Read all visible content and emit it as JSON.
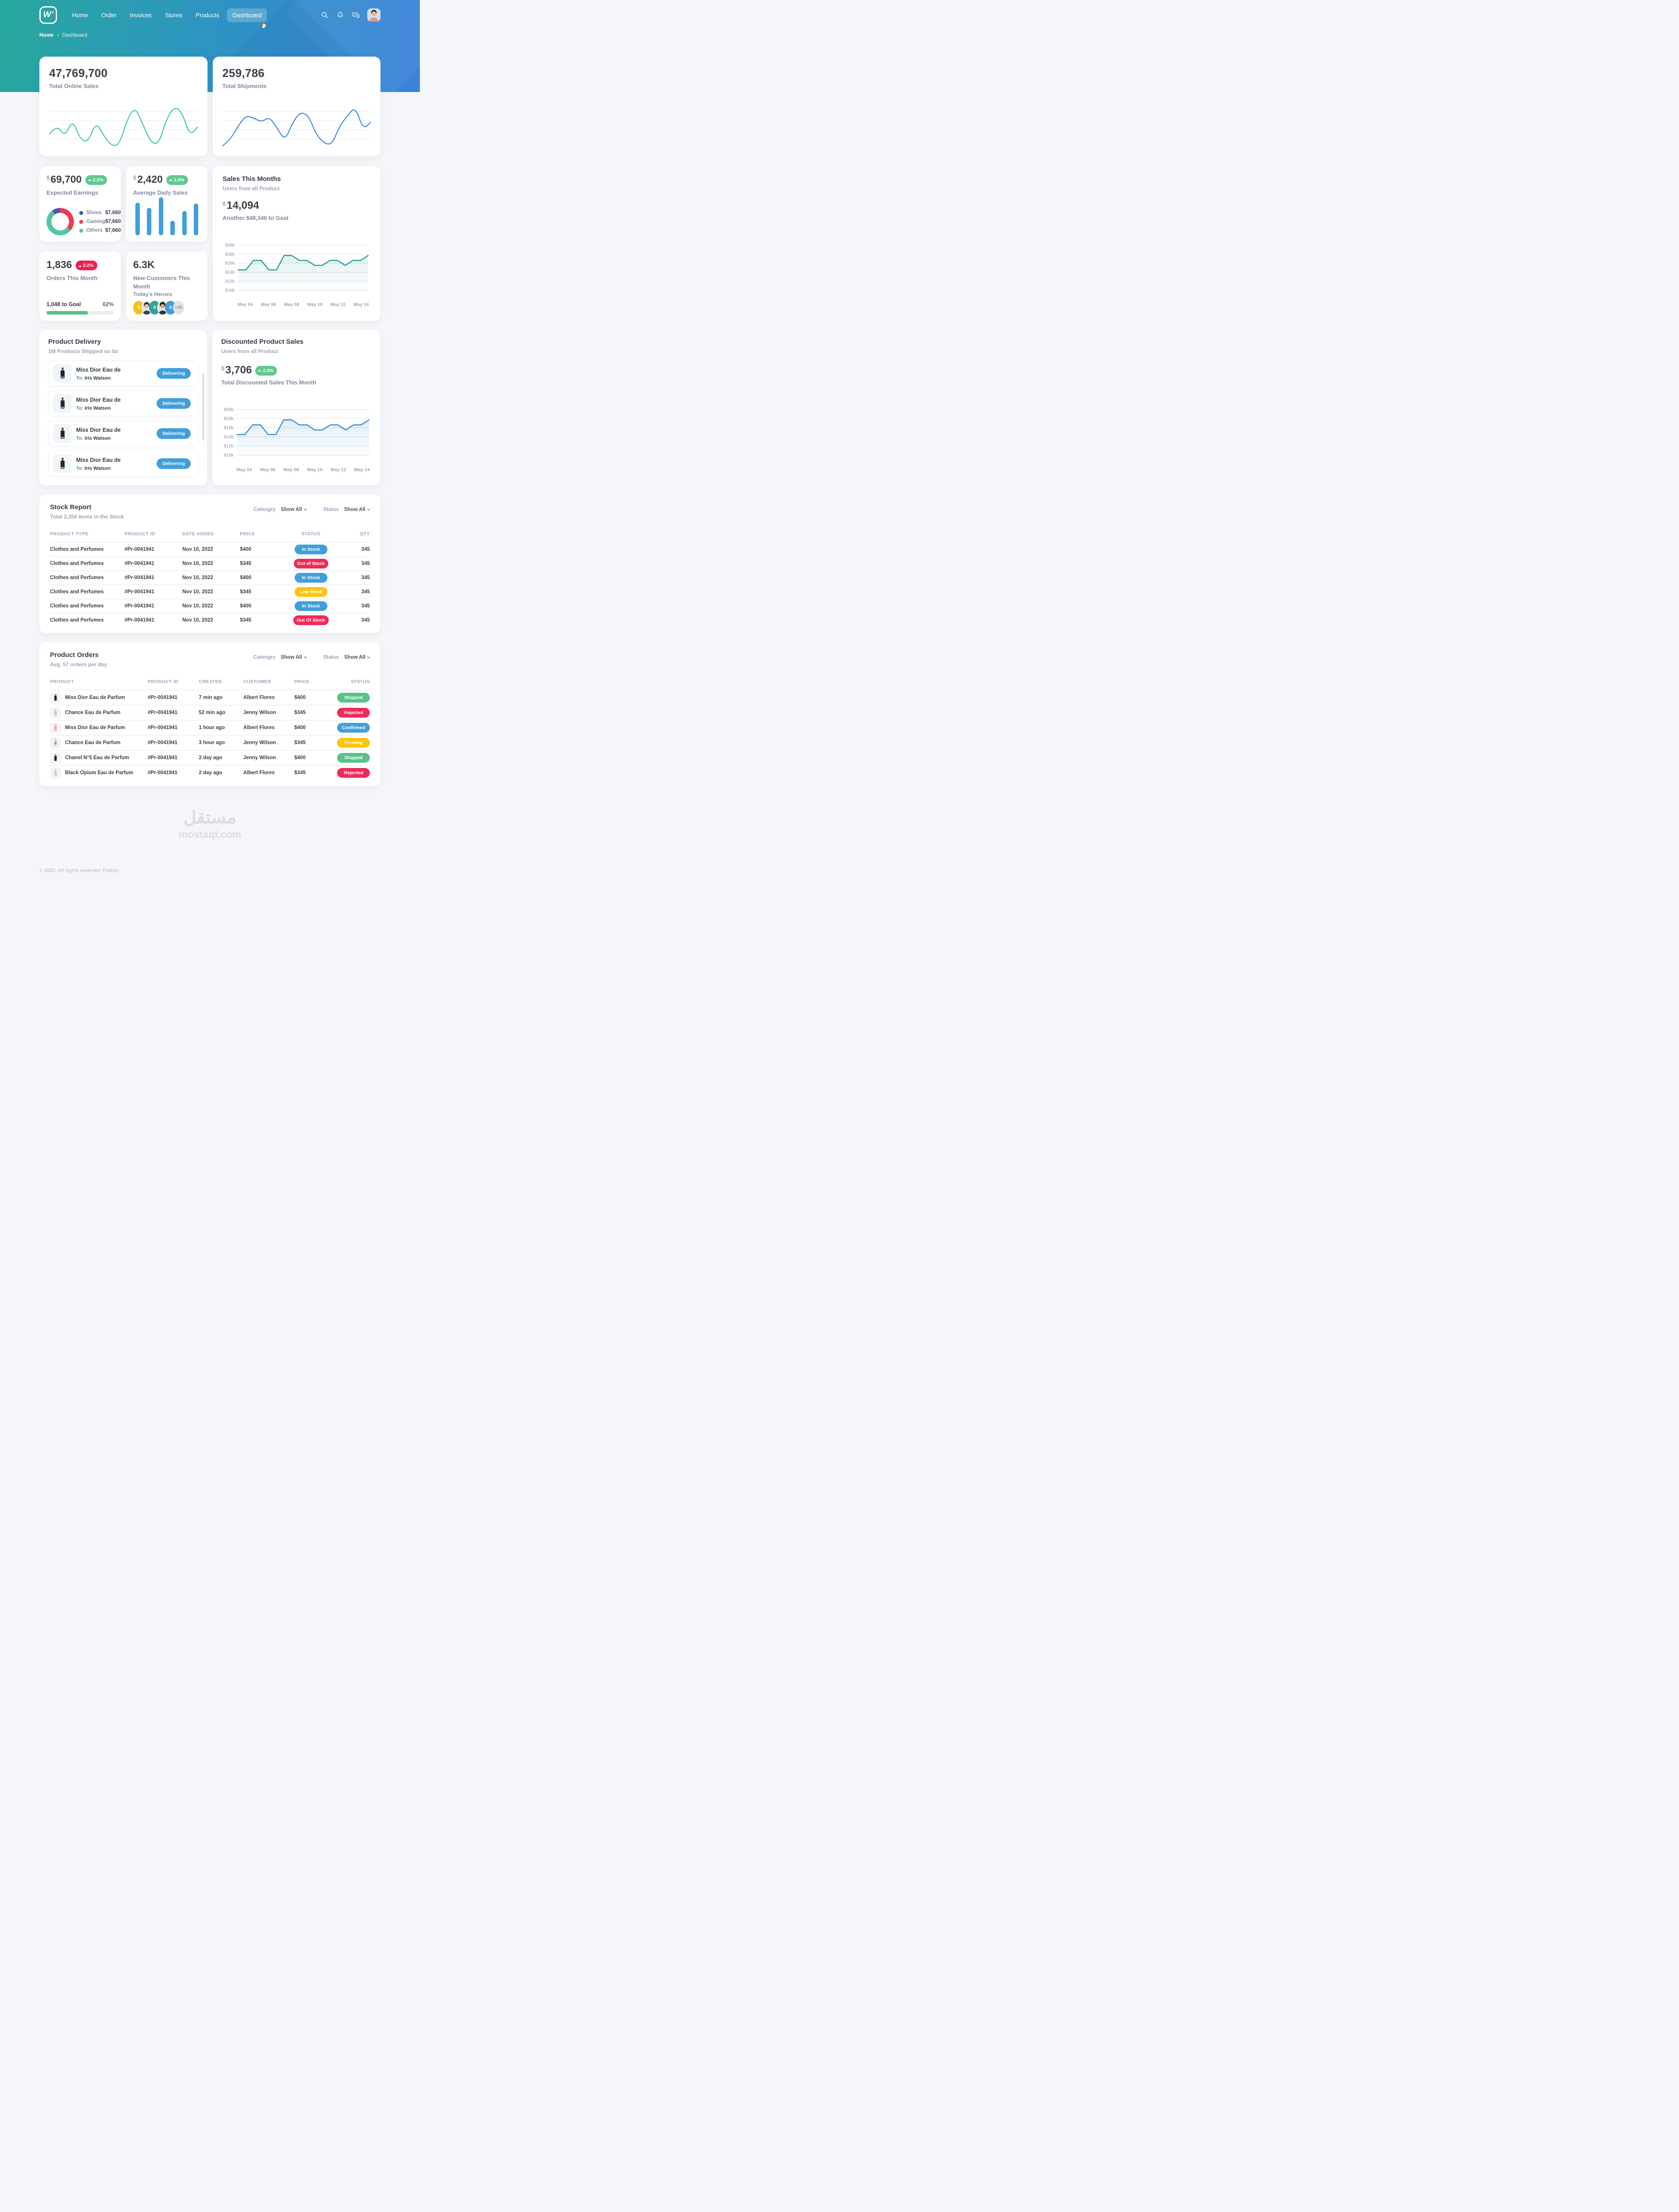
{
  "nav": {
    "logo": "W’",
    "items": [
      {
        "label": "Home"
      },
      {
        "label": "Order"
      },
      {
        "label": "Invoices"
      },
      {
        "label": "Stores"
      },
      {
        "label": "Products"
      },
      {
        "label": "Dashboard",
        "active": true
      }
    ],
    "icons": [
      "search-icon",
      "bell-icon",
      "chat-icon"
    ]
  },
  "breadcrumb": {
    "home": "Home",
    "sep": "›",
    "current": "Dashboard"
  },
  "stats_row": [
    {
      "value": "47,769,700",
      "label": "Total Online Sales"
    },
    {
      "value": "259,786",
      "label": "Total Shipments"
    }
  ],
  "expected_earnings": {
    "currency": "$",
    "value": "69,700",
    "badge": "2.2%",
    "label": "Expected Earnings",
    "legend": [
      {
        "name": "Shoes",
        "value": "$7,660",
        "color": "#4956b3"
      },
      {
        "name": "Gaming",
        "value": "$7,660",
        "color": "#ee3b50"
      },
      {
        "name": "Others",
        "value": "$7,660",
        "color": "#52c5a7"
      }
    ]
  },
  "avg_daily_sales": {
    "currency": "$",
    "value": "2,420",
    "badge": "2.6%",
    "label": "Average Daily Sales"
  },
  "sales_this_month": {
    "title": "Sales This Months",
    "subtitle": "Users from all Product",
    "currency": "$",
    "value": "14,094",
    "goal_label": "Another $48,346 to Goal"
  },
  "orders_this_month": {
    "value": "1,836",
    "badge": "2.2%",
    "label": "Orders This Month",
    "goal_label": "1,048 to Goal",
    "goal_pct": "62%",
    "progress_css": "62%"
  },
  "new_customers": {
    "value": "6.3K",
    "label": "New Customers This Month",
    "heroes_label": "Today’s Heroes",
    "avatars": [
      {
        "kind": "initial",
        "label": "S",
        "bg": "#f2c11c"
      },
      {
        "kind": "photo",
        "label": "",
        "bg": "#dfe7ef"
      },
      {
        "kind": "initial",
        "label": "S",
        "bg": "#2aa59b"
      },
      {
        "kind": "photo",
        "label": "",
        "bg": "#e9e3da"
      },
      {
        "kind": "initial",
        "label": "S",
        "bg": "#3f9fdb"
      },
      {
        "kind": "more",
        "label": "+45",
        "bg": "#e3e3e6"
      }
    ]
  },
  "product_delivery": {
    "title": "Product Delivery",
    "subtitle": "1M Products Shipped so far",
    "items": [
      {
        "name": "Miss Dior Eau de",
        "to_label": "To:",
        "to": "Iris Watson",
        "status": "Delivering"
      },
      {
        "name": "Miss Dior Eau de",
        "to_label": "To:",
        "to": "Iris Watson",
        "status": "Delivering"
      },
      {
        "name": "Miss Dior Eau de",
        "to_label": "To:",
        "to": "Iris Watson",
        "status": "Delivering"
      },
      {
        "name": "Miss Dior Eau de",
        "to_label": "To:",
        "to": "Iris Watson",
        "status": "Delivering"
      }
    ]
  },
  "discounted_sales": {
    "title": "Discounted Product Sales",
    "subtitle": "Users from all Product",
    "currency": "$",
    "value": "3,706",
    "badge": "2.2%",
    "label": "Total Discounted Sales This Month"
  },
  "stock_report": {
    "title": "Stock Report",
    "subtitle": "Total 2,356 Items in the Stock",
    "filters": {
      "category_label": "Cateogry",
      "category_value": "Show All",
      "status_label": "Status",
      "status_value": "Show All"
    },
    "columns": [
      "PRODUCT TYPE",
      "PRODUCT ID",
      "DATE ADDED",
      "PRICE",
      "STATUS",
      "QTY"
    ],
    "rows": [
      {
        "type": "Clothes and Perfumes",
        "id": "#Pr-0041941",
        "date": "Nov 10, 2022",
        "price": "$400",
        "status": "In Stock",
        "qty": "345"
      },
      {
        "type": "Clothes and Perfumes",
        "id": "#Pr-0041941",
        "date": "Nov 10, 2022",
        "price": "$345",
        "status": "Out of Stock",
        "qty": "345"
      },
      {
        "type": "Clothes and Perfumes",
        "id": "#Pr-0041941",
        "date": "Nov 10, 2022",
        "price": "$400",
        "status": "In Stock",
        "qty": "345"
      },
      {
        "type": "Clothes and Perfumes",
        "id": "#Pr-0041941",
        "date": "Nov 10, 2022",
        "price": "$345",
        "status": "Low Stock",
        "qty": "345"
      },
      {
        "type": "Clothes and Perfumes",
        "id": "#Pr-0041941",
        "date": "Nov 10, 2022",
        "price": "$400",
        "status": "In Stock",
        "qty": "345"
      },
      {
        "type": "Clothes and Perfumes",
        "id": "#Pr-0041941",
        "date": "Nov 10, 2022",
        "price": "$345",
        "status": "Out Of Stock",
        "qty": "345"
      }
    ]
  },
  "product_orders": {
    "title": "Product Orders",
    "subtitle": "Avg. 57 orders per day",
    "filters": {
      "category_label": "Cateogry",
      "category_value": "Show All",
      "status_label": "Status",
      "status_value": "Show All"
    },
    "columns": [
      "PRODUCT",
      "PRODUCT ID",
      "CREATED",
      "CUSTOMER",
      "PRICE",
      "STATUS"
    ],
    "rows": [
      {
        "product": "Miss Dior Eau de Parfum",
        "id": "#Pr-0041941",
        "created": "7 min ago",
        "customer": "Albert Flores",
        "price": "$400",
        "status": "Shipped",
        "bottle_color": "#1f2733"
      },
      {
        "product": "Chance Eau de Parfum",
        "id": "#Pr-0041941",
        "created": "52 min ago",
        "customer": "Jenny Wilson",
        "price": "$345",
        "status": "Rejected",
        "bottle_color": "#e9b8c6"
      },
      {
        "product": "Miss Dior Eau de Parfum",
        "id": "#Pr-0041941",
        "created": "1 hour ago",
        "customer": "Albert Flores",
        "price": "$400",
        "status": "Confirmed",
        "bottle_color": "#f0a8c3"
      },
      {
        "product": "Chance Eau de Parfum",
        "id": "#Pr-0041941",
        "created": "3 hour ago",
        "customer": "Jenny Wilson",
        "price": "$345",
        "status": "Pending",
        "bottle_color": "#dcc48e"
      },
      {
        "product": "Chanel N°5 Eau de Parfum",
        "id": "#Pr-0041941",
        "created": "2 day ago",
        "customer": "Jenny Wilson",
        "price": "$400",
        "status": "Shipped",
        "bottle_color": "#1f2733"
      },
      {
        "product": "Black Opium Eau de Parfum",
        "id": "#Pr-0041941",
        "created": "2 day ago",
        "customer": "Albert Flores",
        "price": "$345",
        "status": "Rejected",
        "bottle_color": "#e7c3ca"
      }
    ]
  },
  "watermark": {
    "arabic": "مستقل",
    "domain": "mostaql.com"
  },
  "footer": {
    "copyright": "© 2022, All rights reserved TheKey"
  },
  "colors": {
    "header_gradient_start": "#27a89c",
    "header_gradient_end": "#3b82d9",
    "badge_up": "#5fc98e",
    "badge_down": "#ef1f56",
    "status": {
      "In Stock": "#3f9fdb",
      "Out of Stock": "#ee2a5b",
      "Out Of Stock": "#ee2a5b",
      "Low Stock": "#fcc40a",
      "Shipped": "#58c28c",
      "Rejected": "#ee2a5b",
      "Confirmed": "#3f9fdb",
      "Pending": "#fcc40a",
      "Delivering": "#3f9fdb"
    }
  },
  "chart_data": [
    {
      "id": "total-online-sales-spark",
      "type": "line",
      "title": "Total Online Sales trend",
      "color": "#3fc98c",
      "grid_lines": 4,
      "values": [
        42,
        58,
        38,
        66,
        34,
        30,
        62,
        40,
        24,
        26,
        66,
        86,
        58,
        30,
        26,
        66,
        86,
        78,
        40,
        54
      ]
    },
    {
      "id": "total-shipments-spark",
      "type": "line",
      "title": "Total Shipments trend",
      "color": "#3d87d8",
      "grid_lines": 4,
      "values": [
        26,
        36,
        58,
        74,
        70,
        64,
        72,
        54,
        34,
        64,
        80,
        74,
        44,
        30,
        28,
        58,
        74,
        88,
        52,
        64
      ]
    },
    {
      "id": "average-daily-sales-bars",
      "type": "bar",
      "title": "Average Daily Sales",
      "color": "#3f9fdb",
      "values": [
        62,
        52,
        72,
        28,
        46,
        60
      ]
    },
    {
      "id": "expected-earnings-donut",
      "type": "pie",
      "title": "Expected Earnings split",
      "slices": [
        {
          "label": "Gaming",
          "pct": 36,
          "color": "#ee3b50"
        },
        {
          "label": "Others",
          "pct": 54,
          "color": "#52c5a7"
        },
        {
          "label": "Shoes",
          "pct": 10,
          "color": "#4956b3"
        }
      ]
    },
    {
      "id": "sales-this-month-area",
      "type": "area",
      "title": "Sales This Months",
      "color": "#2ba29b",
      "fill_opacity": 0.14,
      "values": [
        14.5,
        14.5,
        16.6,
        16.6,
        14.5,
        14.5,
        17.7,
        17.7,
        16.6,
        16.6,
        15.5,
        15.5,
        16.6,
        16.6,
        15.5,
        16.6,
        16.6,
        17.7
      ],
      "ylim": [
        9.2,
        20.8
      ],
      "y_values": [
        20,
        18,
        16,
        14,
        12,
        10
      ],
      "y_ticks": [
        "$20k",
        "$18k",
        "$16k",
        "$14k",
        "$12k",
        "$10k"
      ],
      "x_labels": [
        "May 04",
        "May 06",
        "May 08",
        "May 10",
        "May 12",
        "May 14"
      ]
    },
    {
      "id": "discounted-sales-area",
      "type": "area",
      "title": "Discounted Product Sales",
      "color": "#4193d8",
      "fill_opacity": 0.16,
      "values": [
        14.5,
        14.5,
        16.6,
        16.6,
        14.5,
        14.5,
        17.7,
        17.7,
        16.6,
        16.6,
        15.5,
        15.5,
        16.6,
        16.6,
        15.5,
        16.6,
        16.6,
        17.7
      ],
      "ylim": [
        9.2,
        20.8
      ],
      "y_values": [
        20,
        18,
        16,
        14,
        12,
        10
      ],
      "y_ticks": [
        "$20k",
        "$18k",
        "$16k",
        "$14k",
        "$12k",
        "$10k"
      ],
      "x_labels": [
        "May 04",
        "May 06",
        "May 08",
        "May 10",
        "May 12",
        "May 14"
      ]
    }
  ]
}
